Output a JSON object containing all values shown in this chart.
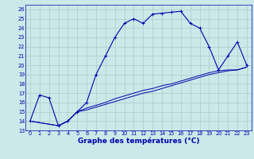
{
  "bg_color": "#cce8e8",
  "grid_color": "#aacccc",
  "line_color": "#0000aa",
  "xlabel": "Graphe des températures (°C)",
  "xlabel_fontsize": 6.5,
  "ylim": [
    13,
    26.5
  ],
  "xlim": [
    -0.5,
    23.5
  ],
  "yticks": [
    13,
    14,
    15,
    16,
    17,
    18,
    19,
    20,
    21,
    22,
    23,
    24,
    25,
    26
  ],
  "xticks": [
    0,
    1,
    2,
    3,
    4,
    5,
    6,
    7,
    8,
    9,
    10,
    11,
    12,
    13,
    14,
    15,
    16,
    17,
    18,
    19,
    20,
    21,
    22,
    23
  ],
  "curve1_x": [
    0,
    1,
    2,
    3,
    4,
    5,
    6,
    7,
    8,
    9,
    10,
    11,
    12,
    13,
    14,
    15,
    16,
    17,
    18,
    19,
    20,
    21,
    22,
    23
  ],
  "curve1_y": [
    14,
    16.8,
    16.5,
    13.5,
    14.0,
    15.0,
    16.0,
    19.0,
    21.0,
    23.0,
    24.5,
    25.0,
    24.5,
    25.5,
    25.6,
    25.7,
    25.8,
    24.5,
    24.0,
    22.0,
    19.5,
    21.0,
    22.5,
    20.0
  ],
  "curve2_x": [
    0,
    3,
    4,
    5,
    6,
    7,
    8,
    9,
    10,
    11,
    12,
    13,
    14,
    15,
    16,
    17,
    18,
    19,
    20,
    21,
    22,
    23
  ],
  "curve2_y": [
    14,
    13.5,
    14.0,
    15.0,
    15.4,
    15.7,
    16.0,
    16.4,
    16.7,
    17.0,
    17.3,
    17.5,
    17.8,
    18.0,
    18.3,
    18.6,
    18.9,
    19.2,
    19.4,
    19.5,
    19.5,
    19.8
  ],
  "curve3_x": [
    0,
    3,
    4,
    5,
    6,
    7,
    8,
    9,
    10,
    11,
    12,
    13,
    14,
    15,
    16,
    17,
    18,
    19,
    20,
    21,
    22,
    23
  ],
  "curve3_y": [
    14,
    13.5,
    14.0,
    15.0,
    15.2,
    15.5,
    15.8,
    16.1,
    16.4,
    16.7,
    17.0,
    17.2,
    17.5,
    17.8,
    18.1,
    18.4,
    18.7,
    19.0,
    19.2,
    19.4,
    19.5,
    19.8
  ]
}
